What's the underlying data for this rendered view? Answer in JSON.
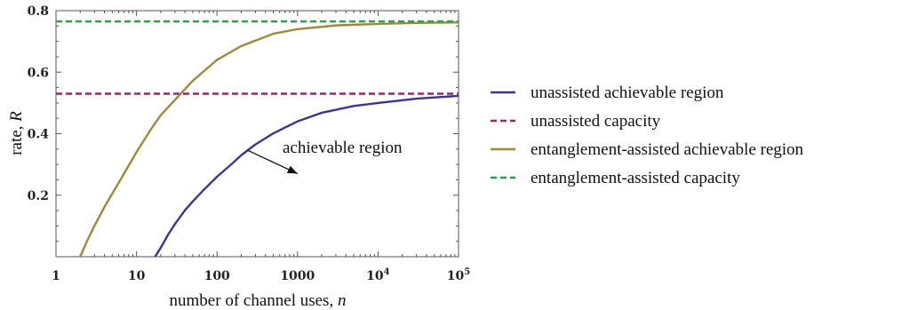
{
  "chart_data": {
    "type": "line",
    "xlabel": "number of channel uses, ",
    "xlabel_var": "n",
    "ylabel": "rate, ",
    "ylabel_var": "R",
    "x_scale": "log",
    "xlim": [
      1,
      100000
    ],
    "ylim": [
      0,
      0.8
    ],
    "x_ticks": [
      {
        "value": 1,
        "label": "1"
      },
      {
        "value": 10,
        "label": "10"
      },
      {
        "value": 100,
        "label": "100"
      },
      {
        "value": 1000,
        "label": "1000"
      },
      {
        "value": 10000,
        "label": "10",
        "sup": "4"
      },
      {
        "value": 100000,
        "label": "10",
        "sup": "5"
      }
    ],
    "y_ticks": [
      {
        "value": 0.2,
        "label": "0.2"
      },
      {
        "value": 0.4,
        "label": "0.4"
      },
      {
        "value": 0.6,
        "label": "0.6"
      },
      {
        "value": 0.8,
        "label": "0.8"
      }
    ],
    "annotation": {
      "text": "achievable region",
      "arrow_from": [
        300,
        0.355
      ],
      "arrow_to": [
        1000,
        0.27
      ]
    },
    "legend_position": "right",
    "series": [
      {
        "name": "unassisted achievable region",
        "color": "#3b3494",
        "style": "solid",
        "x": [
          17,
          20,
          25,
          30,
          40,
          50,
          70,
          100,
          150,
          200,
          300,
          500,
          700,
          1000,
          2000,
          5000,
          10000,
          30000,
          100000
        ],
        "y": [
          0.0,
          0.029,
          0.074,
          0.106,
          0.151,
          0.18,
          0.22,
          0.26,
          0.3,
          0.33,
          0.365,
          0.401,
          0.42,
          0.44,
          0.468,
          0.49,
          0.5,
          0.514,
          0.523
        ]
      },
      {
        "name": "unassisted capacity",
        "color": "#8c2d64",
        "style": "dashed",
        "x": [
          1,
          100000
        ],
        "y": [
          0.53,
          0.53
        ]
      },
      {
        "name": "entanglement-assisted achievable region",
        "color": "#9a8a3c",
        "style": "solid",
        "x": [
          2,
          2.5,
          3,
          4,
          5,
          7,
          10,
          15,
          20,
          30,
          50,
          100,
          200,
          500,
          1000,
          3000,
          10000,
          30000,
          100000
        ],
        "y": [
          0.0,
          0.058,
          0.1,
          0.162,
          0.205,
          0.27,
          0.34,
          0.413,
          0.46,
          0.51,
          0.572,
          0.64,
          0.685,
          0.725,
          0.74,
          0.752,
          0.757,
          0.76,
          0.762
        ]
      },
      {
        "name": "entanglement-assisted capacity",
        "color": "#2e9e4f",
        "style": "dashed",
        "x": [
          1,
          100000
        ],
        "y": [
          0.765,
          0.765
        ]
      }
    ]
  }
}
